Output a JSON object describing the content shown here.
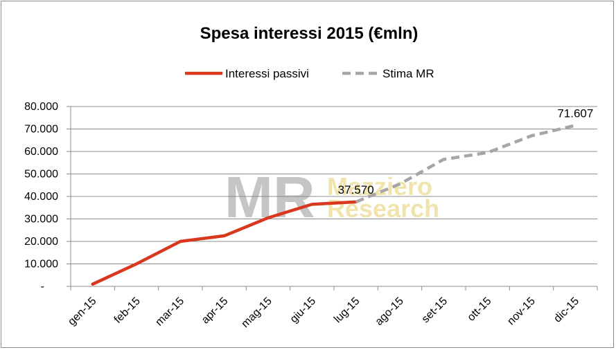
{
  "chart_data": {
    "type": "line",
    "title": "Spesa interessi 2015 (€mln)",
    "categories": [
      "gen-15",
      "feb-15",
      "mar-15",
      "apr-15",
      "mag-15",
      "giu-15",
      "lug-15",
      "ago-15",
      "set-15",
      "ott-15",
      "nov-15",
      "dic-15"
    ],
    "y_tick_labels": [
      "-",
      "10.000",
      "20.000",
      "30.000",
      "40.000",
      "50.000",
      "60.000",
      "70.000",
      "80.000"
    ],
    "ylim": [
      0,
      80000
    ],
    "grid": true,
    "legend_position": "top",
    "series": [
      {
        "name": "Interessi passivi",
        "color": "#d9381e",
        "style": "solid",
        "values": [
          1000,
          10000,
          20000,
          22500,
          30500,
          36500,
          37570,
          null,
          null,
          null,
          null,
          null
        ]
      },
      {
        "name": "Stima MR",
        "color": "#a6a6a6",
        "style": "dashed",
        "values": [
          null,
          null,
          null,
          null,
          null,
          null,
          37570,
          45500,
          56500,
          59500,
          67000,
          71607
        ]
      }
    ],
    "data_labels": [
      {
        "series": 0,
        "index": 6,
        "text": "37.570"
      },
      {
        "series": 1,
        "index": 11,
        "text": "71.607"
      }
    ]
  },
  "watermark": {
    "logo_letters": "MR",
    "line1": "Mazziero",
    "line2": "Research"
  }
}
